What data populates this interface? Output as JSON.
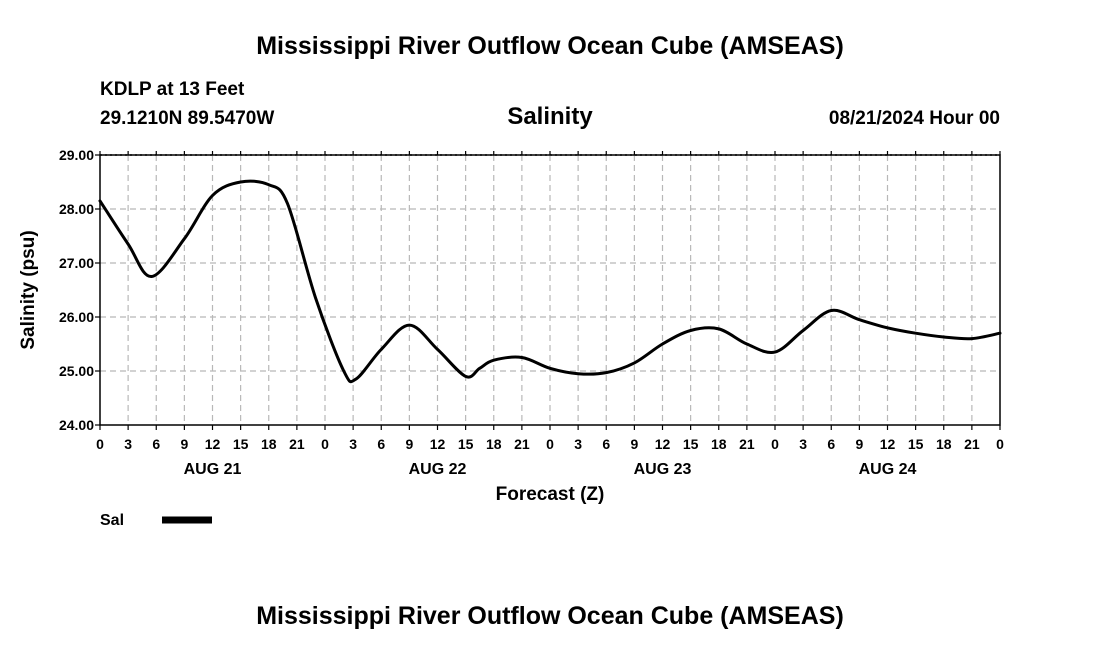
{
  "header": {
    "title": "Mississippi River Outflow Ocean Cube (AMSEAS)",
    "station": "KDLP at 13 Feet",
    "location": "29.1210N  89.5470W",
    "variable": "Salinity",
    "datetime": "08/21/2024 Hour 00"
  },
  "footer": {
    "title": "Mississippi River Outflow Ocean Cube (AMSEAS)"
  },
  "legend": {
    "entries": [
      {
        "label": "Sal",
        "color": "#000000"
      }
    ]
  },
  "chart_data": {
    "type": "line",
    "title": "Salinity",
    "xlabel": "Forecast (Z)",
    "ylabel": "Salinity (psu)",
    "xlim": [
      0,
      96
    ],
    "ylim": [
      24.0,
      29.0
    ],
    "grid": true,
    "legend_position": "bottom-left",
    "yticks": [
      24.0,
      25.0,
      26.0,
      27.0,
      28.0,
      29.0
    ],
    "ytick_labels": [
      "24.00",
      "25.00",
      "26.00",
      "27.00",
      "28.00",
      "29.00"
    ],
    "xticks": [
      0,
      3,
      6,
      9,
      12,
      15,
      18,
      21,
      24,
      27,
      30,
      33,
      36,
      39,
      42,
      45,
      48,
      51,
      54,
      57,
      60,
      63,
      66,
      69,
      72,
      75,
      78,
      81,
      84,
      87,
      90,
      93,
      96
    ],
    "xtick_labels": [
      "0",
      "3",
      "6",
      "9",
      "12",
      "15",
      "18",
      "21",
      "0",
      "3",
      "6",
      "9",
      "12",
      "15",
      "18",
      "21",
      "0",
      "3",
      "6",
      "9",
      "12",
      "15",
      "18",
      "21",
      "0",
      "3",
      "6",
      "9",
      "12",
      "15",
      "18",
      "21",
      "0"
    ],
    "day_labels": [
      {
        "hour": 12,
        "label": "AUG 21"
      },
      {
        "hour": 36,
        "label": "AUG 22"
      },
      {
        "hour": 60,
        "label": "AUG 23"
      },
      {
        "hour": 84,
        "label": "AUG 24"
      }
    ],
    "series": [
      {
        "name": "Sal",
        "color": "#000000",
        "x": [
          0,
          3,
          5.5,
          9,
          12,
          15,
          18,
          20,
          23,
          26,
          27.3,
          30,
          33,
          36,
          39,
          40.5,
          42,
          45,
          48,
          51,
          54,
          57,
          60,
          63,
          66,
          69,
          72,
          75,
          78,
          81,
          84,
          87,
          90,
          93,
          96
        ],
        "values": [
          28.15,
          27.35,
          26.75,
          27.45,
          28.25,
          28.5,
          28.45,
          28.1,
          26.35,
          25.0,
          24.85,
          25.4,
          25.85,
          25.4,
          24.9,
          25.05,
          25.2,
          25.25,
          25.05,
          24.95,
          24.97,
          25.15,
          25.5,
          25.75,
          25.78,
          25.5,
          25.35,
          25.75,
          26.12,
          25.95,
          25.8,
          25.7,
          25.63,
          25.6,
          25.7
        ]
      }
    ]
  }
}
